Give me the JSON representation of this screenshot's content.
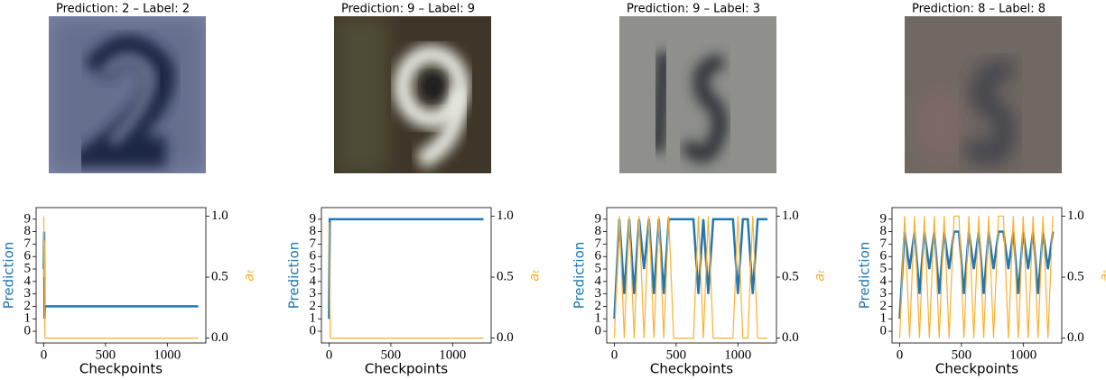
{
  "chart_data": [
    {
      "type": "line",
      "title": "Prediction: 2 – Label: 2",
      "xlabel": "Checkpoints",
      "ylabel": "Prediction",
      "y2label": "aₜ",
      "x": [
        0,
        3,
        6,
        9,
        12,
        15,
        1250
      ],
      "series": [
        {
          "name": "Prediction",
          "color": "#1f77b4",
          "values": [
            5,
            8,
            1,
            2,
            2,
            2,
            2
          ]
        },
        {
          "name": "aₜ",
          "color": "#fbb030",
          "axis": "y2",
          "values": [
            1,
            0.5,
            0.8,
            0,
            0,
            0,
            0
          ]
        }
      ],
      "xlim": [
        -62,
        1312
      ],
      "xticks": [
        0,
        500,
        1000
      ],
      "ylim": [
        -0.94,
        9.93
      ],
      "yticks": [
        0,
        1,
        2,
        3,
        4,
        5,
        6,
        7,
        8,
        9
      ],
      "y2lim": [
        -0.04,
        1.07
      ],
      "y2ticks": [
        {
          "value": 0,
          "label": "0.0"
        },
        0.5,
        {
          "value": 1,
          "label": "1.0"
        }
      ]
    },
    {
      "type": "line",
      "title": "Prediction: 9 – Label: 9",
      "xlabel": "Checkpoints",
      "ylabel": "Prediction",
      "y2label": "aₜ",
      "x": [
        0,
        5,
        10,
        1250
      ],
      "series": [
        {
          "name": "Prediction",
          "color": "#1f77b4",
          "values": [
            1,
            9,
            9,
            9
          ]
        },
        {
          "name": "aₜ",
          "color": "#fbb030",
          "axis": "y2",
          "values": [
            0.95,
            0.5,
            0,
            0
          ]
        }
      ],
      "xlim": [
        -62,
        1312
      ],
      "xticks": [
        0,
        500,
        1000
      ],
      "ylim": [
        -0.94,
        9.93
      ],
      "yticks": [
        0,
        1,
        2,
        3,
        4,
        5,
        6,
        7,
        8,
        9
      ],
      "y2lim": [
        -0.04,
        1.07
      ],
      "y2ticks": [
        {
          "value": 0,
          "label": "0.0"
        },
        0.5,
        {
          "value": 1,
          "label": "1.0"
        }
      ]
    },
    {
      "type": "line",
      "title": "Prediction: 9 – Label: 3",
      "xlabel": "Checkpoints",
      "ylabel": "Prediction",
      "y2label": "aₜ",
      "x": [
        0,
        40,
        80,
        120,
        160,
        200,
        240,
        280,
        320,
        360,
        400,
        440,
        480,
        520,
        560,
        600,
        640,
        680,
        720,
        760,
        800,
        840,
        880,
        920,
        960,
        1000,
        1040,
        1080,
        1120,
        1160,
        1200,
        1240
      ],
      "series": [
        {
          "name": "Prediction",
          "color": "#1f77b4",
          "values": [
            1,
            9,
            3,
            9,
            3,
            9,
            5,
            9,
            3,
            9,
            3,
            9,
            9,
            9,
            9,
            9,
            9,
            3,
            9,
            3,
            9,
            9,
            9,
            9,
            9,
            3,
            9,
            9,
            3,
            9,
            9,
            9
          ]
        },
        {
          "name": "aₜ",
          "color": "#fbb030",
          "axis": "y2",
          "values": [
            0,
            1,
            0,
            1,
            0,
            1,
            0,
            1,
            0,
            1,
            0,
            1,
            0,
            0,
            0,
            0,
            0,
            1,
            0,
            1,
            0,
            0,
            0,
            0,
            0,
            1,
            0,
            0,
            1,
            0,
            0,
            0
          ]
        }
      ],
      "xlim": [
        -62,
        1312
      ],
      "xticks": [
        0,
        500,
        1000
      ],
      "ylim": [
        -0.94,
        9.93
      ],
      "yticks": [
        0,
        1,
        2,
        3,
        4,
        5,
        6,
        7,
        8,
        9
      ],
      "y2lim": [
        -0.04,
        1.07
      ],
      "y2ticks": [
        {
          "value": 0,
          "label": "0.0"
        },
        0.5,
        {
          "value": 1,
          "label": "1.0"
        }
      ]
    },
    {
      "type": "line",
      "title": "Prediction: 8 – Label: 8",
      "xlabel": "Checkpoints",
      "ylabel": "Prediction",
      "y2label": "aₜ",
      "x": [
        0,
        40,
        80,
        120,
        160,
        200,
        240,
        280,
        320,
        360,
        400,
        440,
        480,
        520,
        560,
        600,
        640,
        680,
        720,
        760,
        800,
        840,
        880,
        920,
        960,
        1000,
        1040,
        1080,
        1120,
        1160,
        1200,
        1240
      ],
      "series": [
        {
          "name": "Prediction",
          "color": "#1f77b4",
          "values": [
            1,
            8,
            5,
            8,
            3,
            8,
            5,
            8,
            3,
            8,
            5,
            8,
            8,
            3,
            8,
            5,
            8,
            3,
            8,
            5,
            8,
            8,
            5,
            8,
            3,
            8,
            5,
            8,
            3,
            8,
            5,
            8
          ]
        },
        {
          "name": "aₜ",
          "color": "#fbb030",
          "axis": "y2",
          "values": [
            0,
            1,
            0,
            1,
            0,
            1,
            0,
            1,
            0,
            1,
            0,
            1,
            1,
            0,
            1,
            0,
            1,
            0,
            1,
            0,
            1,
            1,
            0,
            1,
            0,
            1,
            0,
            1,
            0,
            1,
            0,
            1
          ]
        }
      ],
      "xlim": [
        -62,
        1312
      ],
      "xticks": [
        0,
        500,
        1000
      ],
      "ylim": [
        -0.94,
        9.93
      ],
      "yticks": [
        0,
        1,
        2,
        3,
        4,
        5,
        6,
        7,
        8,
        9
      ],
      "y2lim": [
        -0.04,
        1.07
      ],
      "y2ticks": [
        {
          "value": 0,
          "label": "0.0"
        },
        0.5,
        {
          "value": 1,
          "label": "1.0"
        }
      ]
    }
  ]
}
